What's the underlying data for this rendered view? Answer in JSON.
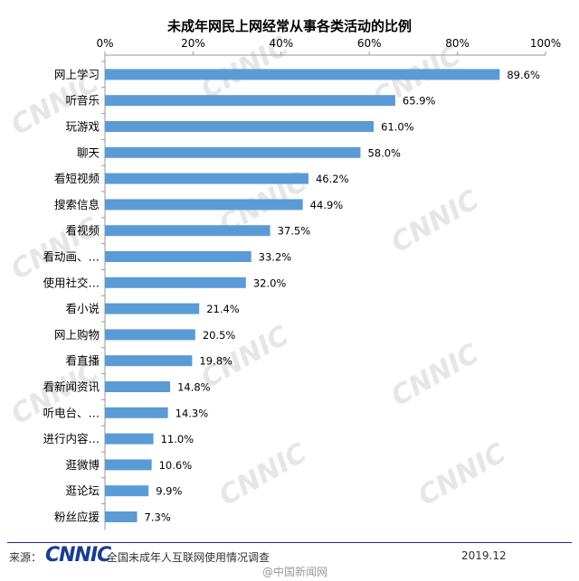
{
  "chart_data": {
    "type": "bar",
    "orientation": "horizontal",
    "title": "未成年网民上网经常从事各类活动的比例",
    "categories": [
      "网上学习",
      "听音乐",
      "玩游戏",
      "聊天",
      "看短视频",
      "搜索信息",
      "看视频",
      "看动画、…",
      "使用社交…",
      "看小说",
      "网上购物",
      "看直播",
      "看新闻资讯",
      "听电台、…",
      "进行内容…",
      "逛微博",
      "逛论坛",
      "粉丝应援"
    ],
    "values": [
      89.6,
      65.9,
      61.0,
      58.0,
      46.2,
      44.9,
      37.5,
      33.2,
      32.0,
      21.4,
      20.5,
      19.8,
      14.8,
      14.3,
      11.0,
      10.6,
      9.9,
      7.3
    ],
    "value_labels": [
      "89.6%",
      "65.9%",
      "61.0%",
      "58.0%",
      "46.2%",
      "44.9%",
      "37.5%",
      "33.2%",
      "32.0%",
      "21.4%",
      "20.5%",
      "19.8%",
      "14.8%",
      "14.3%",
      "11.0%",
      "10.6%",
      "9.9%",
      "7.3%"
    ],
    "xticks": [
      "0%",
      "20%",
      "40%",
      "60%",
      "80%",
      "100%"
    ],
    "xlim": [
      0,
      100
    ],
    "axis_position": "top",
    "grid": false,
    "bar_color": "#5b9bd5"
  },
  "watermark": "CNNIC",
  "footer": {
    "source_label": "来源：",
    "logo": "CNNIC",
    "survey": "全国未成年人互联网使用情况调查",
    "date": "2019.12",
    "weibo": "@中国新闻网"
  }
}
